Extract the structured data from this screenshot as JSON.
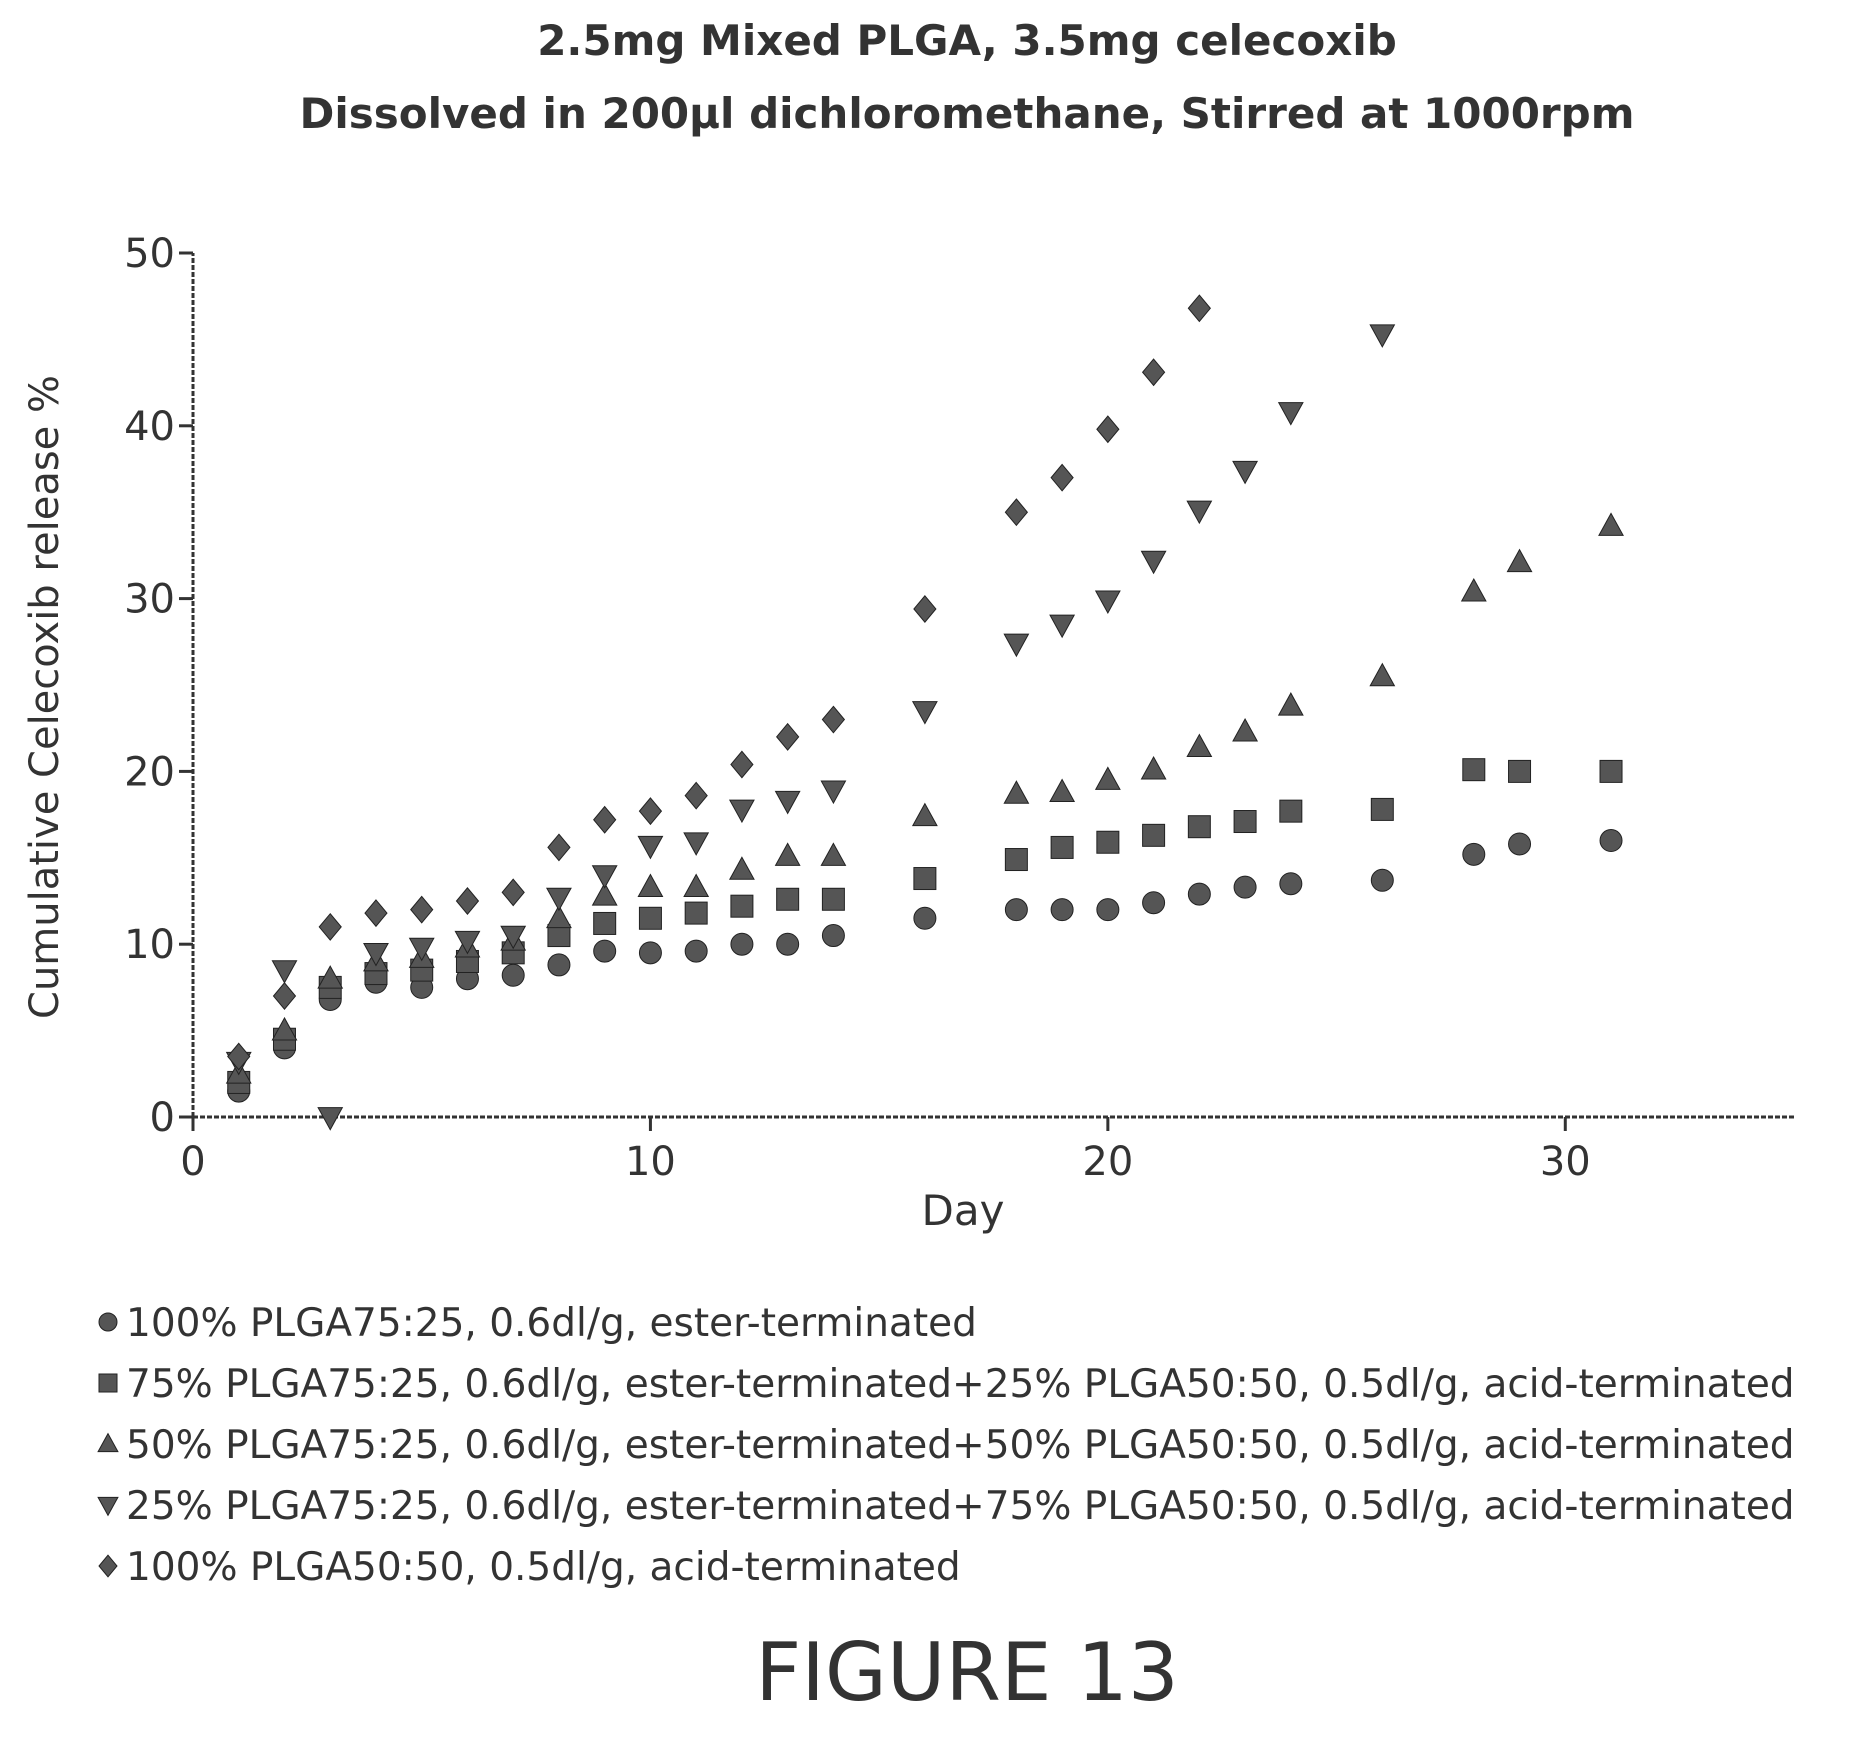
{
  "chart_data": {
    "type": "scatter",
    "title": "2.5mg Mixed PLGA, 3.5mg celecoxib",
    "subtitle": "Dissolved in 200µl dichloromethane, Stirred at 1000rpm",
    "xlabel": "Day",
    "ylabel": "Cumulative Celecoxib release %",
    "xlim": [
      0,
      35
    ],
    "ylim": [
      0,
      50
    ],
    "xticks": [
      0,
      10,
      20,
      30
    ],
    "yticks": [
      0,
      10,
      20,
      30,
      40,
      50
    ],
    "grid": false,
    "legend_position": "bottom",
    "marker_color": "#555555",
    "series": [
      {
        "name": "100% PLGA75:25, 0.6dl/g, ester-terminated",
        "marker": "circle",
        "x": [
          1,
          2,
          3,
          4,
          5,
          6,
          7,
          8,
          9,
          10,
          11,
          12,
          13,
          14,
          16,
          18,
          19,
          20,
          21,
          22,
          23,
          24,
          26,
          28,
          29,
          31
        ],
        "y": [
          1.5,
          4,
          6.8,
          7.8,
          7.5,
          8,
          8.2,
          8.8,
          9.6,
          9.5,
          9.6,
          10,
          10,
          10.5,
          11.5,
          12,
          12,
          12,
          12.4,
          12.9,
          13.3,
          13.5,
          13.7,
          15.2,
          15.8,
          16
        ]
      },
      {
        "name": "75% PLGA75:25, 0.6dl/g, ester-terminated+25% PLGA50:50, 0.5dl/g, acid-terminated",
        "marker": "square",
        "x": [
          1,
          2,
          3,
          4,
          5,
          6,
          7,
          8,
          9,
          10,
          11,
          12,
          13,
          14,
          16,
          18,
          19,
          20,
          21,
          22,
          23,
          24,
          26,
          28,
          29,
          31
        ],
        "y": [
          2,
          4.5,
          7.5,
          8.3,
          8.5,
          9,
          9.5,
          10.5,
          11.2,
          11.5,
          11.8,
          12.2,
          12.6,
          12.6,
          13.8,
          14.9,
          15.6,
          15.9,
          16.3,
          16.8,
          17.1,
          17.7,
          17.8,
          20.1,
          20,
          20
        ]
      },
      {
        "name": "50% PLGA75:25, 0.6dl/g, ester-terminated+50% PLGA50:50, 0.5dl/g, acid-terminated",
        "marker": "triangle-up",
        "x": [
          1,
          2,
          3,
          4,
          5,
          6,
          7,
          8,
          9,
          10,
          11,
          12,
          13,
          14,
          16,
          18,
          19,
          20,
          21,
          22,
          23,
          24,
          26,
          28,
          29,
          31
        ],
        "y": [
          2.5,
          5,
          8,
          9,
          9.2,
          9.8,
          10.2,
          11.5,
          12.8,
          13.3,
          13.3,
          14.3,
          15.1,
          15.1,
          17.4,
          18.7,
          18.8,
          19.5,
          20.1,
          21.4,
          22.3,
          23.8,
          25.5,
          30.4,
          32.1,
          34.2
        ]
      },
      {
        "name": "25% PLGA75:25, 0.6dl/g, ester-terminated+75% PLGA50:50, 0.5dl/g, acid-terminated",
        "marker": "triangle-down",
        "x": [
          1,
          2,
          3,
          4,
          5,
          6,
          7,
          8,
          9,
          10,
          11,
          12,
          13,
          14,
          16,
          18,
          19,
          20,
          21,
          22,
          23,
          24,
          26
        ],
        "y": [
          3.2,
          8.5,
          0,
          9.5,
          9.8,
          10.2,
          10.5,
          12.7,
          14,
          15.7,
          15.9,
          17.8,
          18.3,
          18.9,
          23.5,
          27.4,
          28.5,
          29.9,
          32.2,
          35.1,
          37.4,
          40.8,
          45.3
        ]
      },
      {
        "name": "100% PLGA50:50, 0.5dl/g, acid-terminated",
        "marker": "diamond",
        "x": [
          1,
          2,
          3,
          4,
          5,
          6,
          7,
          8,
          9,
          10,
          11,
          12,
          13,
          14,
          16,
          18,
          19,
          20,
          21,
          22
        ],
        "y": [
          3.5,
          7,
          11,
          11.8,
          12,
          12.5,
          13,
          15.6,
          17.2,
          17.7,
          18.6,
          20.4,
          22,
          23,
          29.4,
          35,
          37,
          39.8,
          43.1,
          46.8
        ]
      }
    ]
  },
  "figure_label": "FIGURE 13"
}
